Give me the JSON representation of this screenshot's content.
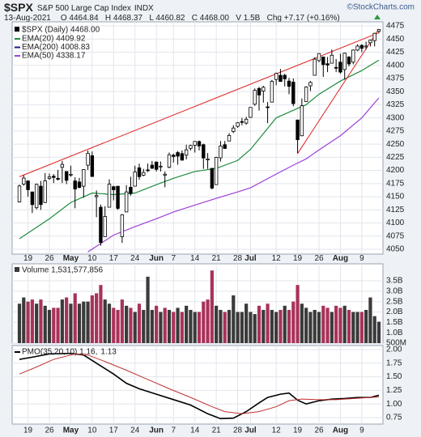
{
  "header": {
    "symbol": "$SPX",
    "name": "S&P 500 Large Cap Index",
    "exchange": "INDX",
    "date": "13-Aug-2021",
    "quote": "O 4464.84   H 4468.37   L 4460.82   C 4468.00   V 1.5B   Chg +7.17 (+0.16%)",
    "source": "©StockCharts.com"
  },
  "chart_data": [
    {
      "type": "candlestick",
      "legend": "$SPX (Daily) 4468.00",
      "color": "#000000",
      "open": [
        4140,
        4174,
        4180,
        4159,
        4129,
        4170,
        4139,
        4185,
        4189,
        4185,
        4206,
        4198,
        4191,
        4180,
        4178,
        4170,
        4210,
        4228,
        4150,
        4130,
        4074,
        4130,
        4169,
        4170,
        4074,
        4121,
        4168,
        4170,
        4205,
        4191,
        4201,
        4210,
        4216,
        4207,
        4191,
        4206,
        4229,
        4234,
        4232,
        4229,
        4242,
        4248,
        4255,
        4249,
        4220,
        4204,
        4173,
        4224,
        4249,
        4256,
        4274,
        4284,
        4293,
        4290,
        4301,
        4326,
        4356,
        4351,
        4321,
        4330,
        4373,
        4381,
        4381,
        4370,
        4368,
        4296,
        4266,
        4331,
        4361,
        4381,
        4409,
        4416,
        4403,
        4404,
        4396,
        4406,
        4392,
        4416,
        4406,
        4429,
        4438,
        4435,
        4443,
        4447,
        4464.84
      ],
      "high": [
        4173,
        4191,
        4181,
        4160,
        4175,
        4180,
        4195,
        4194,
        4193,
        4201,
        4218,
        4198,
        4209,
        4187,
        4186,
        4202,
        4238,
        4236,
        4162,
        4135,
        4132,
        4183,
        4171,
        4170,
        4117,
        4172,
        4188,
        4209,
        4213,
        4203,
        4213,
        4218,
        4217,
        4217,
        4198,
        4234,
        4232,
        4237,
        4238,
        4249,
        4249,
        4256,
        4257,
        4251,
        4233,
        4204,
        4226,
        4256,
        4256,
        4271,
        4286,
        4292,
        4300,
        4302,
        4320,
        4356,
        4359,
        4361,
        4330,
        4372,
        4386,
        4393,
        4384,
        4376,
        4375,
        4296,
        4337,
        4360,
        4370,
        4415,
        4423,
        4416,
        4416,
        4430,
        4412,
        4422,
        4424,
        4417,
        4430,
        4440,
        4440,
        4445,
        4449,
        4462,
        4468.37
      ],
      "low": [
        4139,
        4171,
        4150,
        4119,
        4126,
        4125,
        4138,
        4182,
        4176,
        4181,
        4176,
        4174,
        4188,
        4128,
        4166,
        4148,
        4201,
        4188,
        4111,
        4057,
        4074,
        4130,
        4143,
        4125,
        4062,
        4121,
        4152,
        4170,
        4182,
        4189,
        4197,
        4203,
        4198,
        4198,
        4168,
        4204,
        4215,
        4211,
        4219,
        4221,
        4238,
        4234,
        4238,
        4203,
        4203,
        4164,
        4173,
        4217,
        4241,
        4256,
        4271,
        4281,
        4286,
        4287,
        4300,
        4323,
        4314,
        4329,
        4290,
        4330,
        4362,
        4369,
        4360,
        4345,
        4322,
        4233,
        4265,
        4331,
        4351,
        4381,
        4406,
        4378,
        4387,
        4404,
        4387,
        4384,
        4373,
        4398,
        4402,
        4427,
        4425,
        4430,
        4436,
        4436,
        4460.82
      ],
      "close": [
        4170.42,
        4185.47,
        4163.26,
        4134.94,
        4173.42,
        4134.98,
        4180.17,
        4187.62,
        4186.72,
        4183.18,
        4211.47,
        4181.17,
        4192.66,
        4164.66,
        4167.59,
        4201.62,
        4232.6,
        4188.43,
        4152.1,
        4063.04,
        4112.5,
        4173.85,
        4163.29,
        4127.83,
        4115.68,
        4159.12,
        4155.86,
        4197.05,
        4188.13,
        4195.99,
        4200.88,
        4204.11,
        4202.04,
        4208.12,
        4192.85,
        4229.89,
        4226.52,
        4227.26,
        4219.55,
        4239.18,
        4247.44,
        4255.15,
        4246.59,
        4223.7,
        4221.86,
        4166.45,
        4224.79,
        4246.44,
        4241.84,
        4266.49,
        4280.7,
        4290.61,
        4291.8,
        4297.5,
        4319.94,
        4352.34,
        4343.54,
        4358.13,
        4320.82,
        4369.55,
        4384.63,
        4369.21,
        4374.3,
        4360.03,
        4327.16,
        4258.49,
        4323.06,
        4358.69,
        4367.48,
        4411.79,
        4422.3,
        4401.46,
        4400.64,
        4419.15,
        4395.26,
        4387.16,
        4423.15,
        4402.66,
        4429.1,
        4436.52,
        4432.35,
        4436.75,
        4447.7,
        4460.83,
        4468
      ],
      "series": [
        {
          "name": "EMA(20) 4409.92",
          "color": "#1e8c3c",
          "x": [
            0,
            7,
            12,
            17,
            22,
            27,
            32,
            36,
            41,
            46,
            51,
            54,
            60,
            65,
            67,
            70,
            75,
            80,
            84
          ],
          "values": [
            4070,
            4108,
            4139,
            4157,
            4154,
            4157,
            4173,
            4185,
            4198,
            4204,
            4219,
            4240,
            4300,
            4318,
            4325,
            4345,
            4370,
            4390,
            4409.92
          ]
        },
        {
          "name": "EMA(200) 4008.83",
          "color": "#1a1a80"
        },
        {
          "name": "EMA(50) 4338.17",
          "color": "#9b40d8",
          "x": [
            16,
            22,
            27,
            32,
            36,
            41,
            46,
            51,
            54,
            60,
            64,
            67,
            70,
            75,
            80,
            84
          ],
          "values": [
            4045,
            4077,
            4093,
            4108,
            4121,
            4134,
            4147,
            4159,
            4167,
            4193,
            4210,
            4222,
            4239,
            4266,
            4300,
            4338.17
          ]
        }
      ],
      "trendlines": [
        {
          "color": "#e02020",
          "x": [
            0,
            84
          ],
          "values": [
            4188,
            4462
          ]
        },
        {
          "color": "#e02020",
          "x": [
            65,
            84
          ],
          "values": [
            4232,
            4469
          ]
        }
      ],
      "ylim": [
        4040.8,
        4482.7
      ],
      "yticks": [
        4050,
        4075,
        4100,
        4125,
        4150,
        4175,
        4200,
        4225,
        4250,
        4275,
        4300,
        4325,
        4350,
        4375,
        4400,
        4425,
        4450,
        4475
      ],
      "xticks": [
        {
          "value": 2,
          "label": "19"
        },
        {
          "value": 7,
          "label": "26"
        },
        {
          "value": 12,
          "label": "May"
        },
        {
          "value": 17,
          "label": "10"
        },
        {
          "value": 22,
          "label": "17"
        },
        {
          "value": 27,
          "label": "24"
        },
        {
          "value": 32,
          "label": "Jun"
        },
        {
          "value": 36,
          "label": "7"
        },
        {
          "value": 41,
          "label": "14"
        },
        {
          "value": 46,
          "label": "21"
        },
        {
          "value": 51,
          "label": "28"
        },
        {
          "value": 54,
          "label": "Jul"
        },
        {
          "value": 60,
          "label": "12"
        },
        {
          "value": 65,
          "label": "19"
        },
        {
          "value": 70,
          "label": "26"
        },
        {
          "value": 75,
          "label": "Aug"
        },
        {
          "value": 80,
          "label": "9"
        }
      ],
      "grid": true
    },
    {
      "type": "bar",
      "name": "Volume 1,531,577,856",
      "up_color": "#3a3a3a",
      "down_color": "#a8325a",
      "values": [
        2400000000,
        2700000000,
        2500000000,
        2600000000,
        2400000000,
        2600000000,
        2300000000,
        2100000000,
        2200000000,
        2200000000,
        2600000000,
        2700000000,
        2400000000,
        2900000000,
        2400000000,
        2500000000,
        2500000000,
        2800000000,
        2900000000,
        3300000000,
        2600000000,
        2400000000,
        2200000000,
        2100000000,
        2600000000,
        2300000000,
        2200000000,
        2000000000,
        2400000000,
        2100000000,
        3700000000,
        2100000000,
        2300000000,
        2000000000,
        2200000000,
        2100000000,
        2000000000,
        2200000000,
        2000000000,
        2300000000,
        2100000000,
        2000000000,
        2000000000,
        2500000000,
        2600000000,
        4000000000,
        2300000000,
        2100000000,
        2000000000,
        2100000000,
        2800000000,
        2000000000,
        2000000000,
        2400000000,
        2000000000,
        1900000000,
        2300000000,
        2100000000,
        2400000000,
        2100000000,
        2000000000,
        2100000000,
        2300000000,
        2100000000,
        2500000000,
        3300000000,
        2400000000,
        2200000000,
        2000000000,
        2100000000,
        2000000000,
        2300000000,
        2200000000,
        2000000000,
        2300000000,
        2200000000,
        2300000000,
        2100000000,
        2000000000,
        2000000000,
        2000000000,
        2100000000,
        2700000000,
        1800000000,
        1531577856
      ],
      "ylim": [
        500000000,
        4320000000
      ],
      "yticks": [
        {
          "value": 500000000,
          "label": "500M"
        },
        {
          "value": 1000000000,
          "label": "1.0B"
        },
        {
          "value": 1500000000,
          "label": "1.5B"
        },
        {
          "value": 2000000000,
          "label": "2.0B"
        },
        {
          "value": 2500000000,
          "label": "2.5B"
        },
        {
          "value": 3000000000,
          "label": "3.0B"
        },
        {
          "value": 3500000000,
          "label": "3.5B"
        }
      ],
      "grid": true
    },
    {
      "type": "line",
      "series": [
        {
          "name": "PMO(35,20,10) 1.16,",
          "color": "#000000",
          "x": [
            0,
            3,
            7,
            12,
            15,
            19,
            22,
            25,
            28,
            32,
            36,
            40,
            44,
            47,
            50,
            53,
            56,
            58,
            61,
            63,
            65,
            67,
            70,
            73,
            76,
            79,
            82,
            84
          ],
          "values": [
            1.82,
            1.86,
            1.92,
            1.93,
            1.9,
            1.7,
            1.55,
            1.38,
            1.28,
            1.18,
            1.08,
            0.98,
            0.82,
            0.73,
            0.74,
            0.86,
            1.02,
            1.12,
            1.18,
            1.2,
            1.07,
            1.0,
            1.06,
            1.09,
            1.1,
            1.12,
            1.12,
            1.16
          ]
        },
        {
          "color": "#c03030",
          "x": [
            0,
            4,
            8,
            13,
            16,
            20,
            25,
            30,
            35,
            40,
            45,
            48,
            52,
            56,
            60,
            63,
            66,
            70,
            74,
            78,
            82,
            84
          ],
          "values": [
            1.55,
            1.68,
            1.82,
            1.92,
            1.9,
            1.78,
            1.62,
            1.45,
            1.28,
            1.12,
            0.95,
            0.86,
            0.82,
            0.86,
            0.95,
            1.06,
            1.09,
            1.08,
            1.08,
            1.1,
            1.12,
            1.13
          ]
        }
      ],
      "ylim": [
        0.631,
        2.074
      ],
      "yticks": [
        0.75,
        {
          "value": 1,
          "label": "1.00"
        },
        1.25,
        {
          "value": 1.5,
          "label": "1.50"
        },
        1.75,
        {
          "value": 2,
          "label": "2.00"
        }
      ],
      "grid": true
    }
  ]
}
